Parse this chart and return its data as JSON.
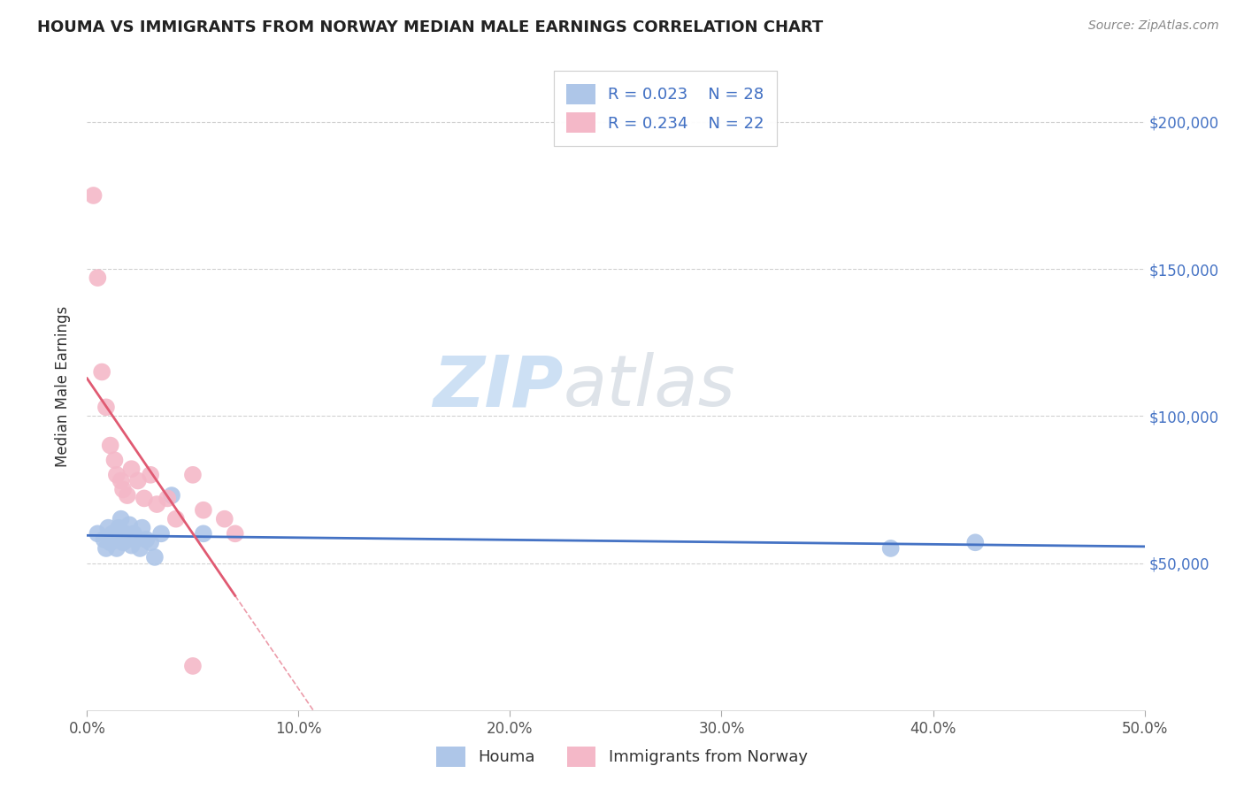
{
  "title": "HOUMA VS IMMIGRANTS FROM NORWAY MEDIAN MALE EARNINGS CORRELATION CHART",
  "source": "Source: ZipAtlas.com",
  "ylabel": "Median Male Earnings",
  "xlim": [
    0.0,
    0.5
  ],
  "ylim": [
    0,
    220000
  ],
  "yticks": [
    50000,
    100000,
    150000,
    200000
  ],
  "ytick_labels": [
    "$50,000",
    "$100,000",
    "$150,000",
    "$200,000"
  ],
  "xticks": [
    0.0,
    0.1,
    0.2,
    0.3,
    0.4,
    0.5
  ],
  "xtick_labels": [
    "0.0%",
    "10.0%",
    "20.0%",
    "30.0%",
    "40.0%",
    "50.0%"
  ],
  "houma_R": "0.023",
  "houma_N": "28",
  "norway_R": "0.234",
  "norway_N": "22",
  "houma_color": "#aec6e8",
  "norway_color": "#f4b8c8",
  "houma_line_color": "#4472c4",
  "norway_line_color": "#e05a72",
  "legend_label_houma": "Houma",
  "legend_label_norway": "Immigrants from Norway",
  "watermark_zip": "ZIP",
  "watermark_atlas": "atlas",
  "background_color": "#ffffff",
  "houma_x": [
    0.005,
    0.008,
    0.009,
    0.01,
    0.011,
    0.012,
    0.013,
    0.014,
    0.015,
    0.016,
    0.016,
    0.017,
    0.018,
    0.019,
    0.02,
    0.021,
    0.022,
    0.023,
    0.025,
    0.026,
    0.028,
    0.03,
    0.032,
    0.035,
    0.04,
    0.055,
    0.38,
    0.42
  ],
  "houma_y": [
    60000,
    58000,
    55000,
    62000,
    57000,
    60000,
    58000,
    55000,
    62000,
    60000,
    65000,
    57000,
    60000,
    58000,
    63000,
    56000,
    60000,
    58000,
    55000,
    62000,
    58000,
    57000,
    52000,
    60000,
    73000,
    60000,
    55000,
    57000
  ],
  "norway_x": [
    0.003,
    0.005,
    0.007,
    0.009,
    0.011,
    0.013,
    0.014,
    0.016,
    0.017,
    0.019,
    0.021,
    0.024,
    0.027,
    0.03,
    0.033,
    0.038,
    0.042,
    0.05,
    0.055,
    0.065,
    0.07,
    0.05
  ],
  "norway_y": [
    175000,
    147000,
    115000,
    103000,
    90000,
    85000,
    80000,
    78000,
    75000,
    73000,
    82000,
    78000,
    72000,
    80000,
    70000,
    72000,
    65000,
    80000,
    68000,
    65000,
    60000,
    15000
  ]
}
